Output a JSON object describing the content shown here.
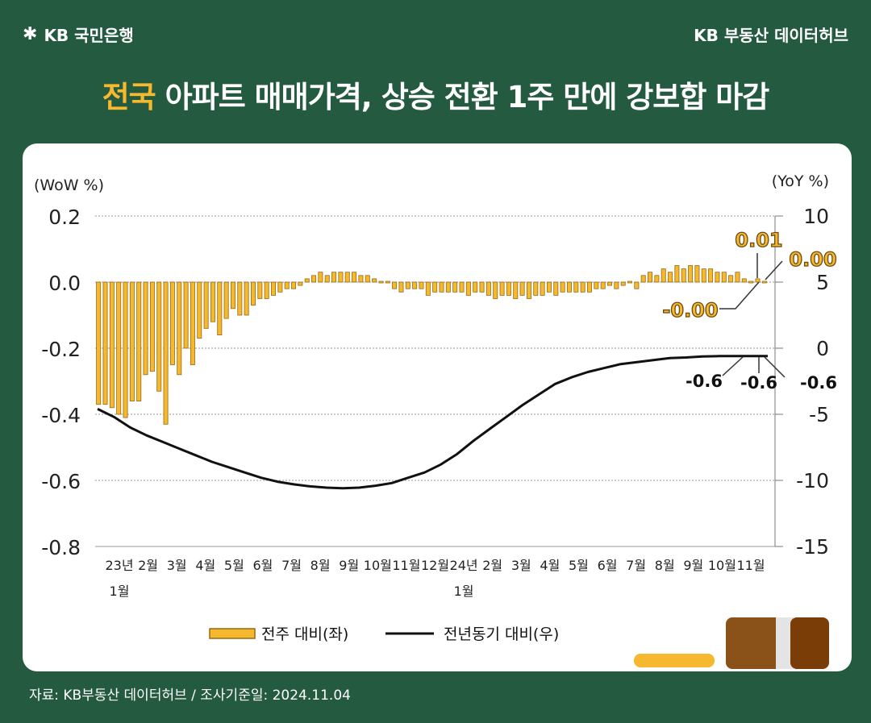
{
  "header": {
    "logo_text": "KB 국민은행",
    "brand": "KB 부동산 데이터허브",
    "title_highlight": "전국",
    "title_rest": " 아파트 매매가격, 상승 전환 1주 만에 강보합 마감"
  },
  "footer": {
    "source": "자료: KB부동산 데이터허브 / 조사기준일: 2024.11.04"
  },
  "colors": {
    "background": "#245a40",
    "bar": "#f5b82e",
    "bar_edge": "#9a6a10",
    "line": "#111111",
    "title_highlight": "#f5b82e"
  },
  "chart_data": {
    "type": "bar",
    "left_axis_label": "(WoW %)",
    "right_axis_label": "(YoY %)",
    "left_ylim": [
      -0.8,
      0.2
    ],
    "left_ticks": [
      "0.2",
      "0.0",
      "-0.2",
      "-0.4",
      "-0.6",
      "-0.8"
    ],
    "right_ylim": [
      -15,
      10
    ],
    "right_ticks": [
      "10",
      "5",
      "0",
      "-5",
      "-10",
      "-15"
    ],
    "x_tick_labels": [
      "23년",
      "2월",
      "3월",
      "4월",
      "5월",
      "6월",
      "7월",
      "8월",
      "9월",
      "10월",
      "11월",
      "12월",
      "24년",
      "2월",
      "3월",
      "4월",
      "5월",
      "6월",
      "7월",
      "8월",
      "9월",
      "10월",
      "11월"
    ],
    "x_tick_sublabels": [
      "1월",
      "",
      "",
      "",
      "",
      "",
      "",
      "",
      "",
      "",
      "",
      "",
      "1월",
      "",
      "",
      "",
      "",
      "",
      "",
      "",
      "",
      "",
      ""
    ],
    "series": [
      {
        "name": "전주 대비(좌)",
        "axis": "left",
        "values": [
          -0.37,
          -0.37,
          -0.38,
          -0.4,
          -0.41,
          -0.36,
          -0.36,
          -0.28,
          -0.27,
          -0.33,
          -0.43,
          -0.25,
          -0.28,
          -0.2,
          -0.25,
          -0.17,
          -0.14,
          -0.12,
          -0.16,
          -0.11,
          -0.08,
          -0.1,
          -0.1,
          -0.07,
          -0.05,
          -0.05,
          -0.04,
          -0.03,
          -0.02,
          -0.02,
          -0.01,
          0.01,
          0.02,
          0.03,
          0.02,
          0.03,
          0.03,
          0.03,
          0.03,
          0.02,
          0.02,
          0.01,
          0.0,
          0.0,
          -0.02,
          -0.03,
          -0.02,
          -0.02,
          -0.02,
          -0.04,
          -0.03,
          -0.03,
          -0.03,
          -0.03,
          -0.03,
          -0.04,
          -0.03,
          -0.03,
          -0.04,
          -0.05,
          -0.04,
          -0.04,
          -0.05,
          -0.04,
          -0.05,
          -0.04,
          -0.04,
          -0.03,
          -0.04,
          -0.03,
          -0.03,
          -0.03,
          -0.03,
          -0.03,
          -0.02,
          -0.02,
          -0.01,
          -0.02,
          -0.01,
          0.0,
          -0.02,
          0.02,
          0.03,
          0.02,
          0.04,
          0.03,
          0.05,
          0.04,
          0.05,
          0.05,
          0.04,
          0.04,
          0.03,
          0.03,
          0.02,
          0.03,
          0.01,
          0.0,
          0.01,
          0.0
        ]
      },
      {
        "name": "전년동기 대비(우)",
        "axis": "right",
        "values": [
          -4.6,
          -5.2,
          -6.0,
          -6.6,
          -7.1,
          -7.6,
          -8.1,
          -8.6,
          -9.0,
          -9.4,
          -9.8,
          -10.1,
          -10.3,
          -10.45,
          -10.55,
          -10.6,
          -10.55,
          -10.4,
          -10.2,
          -9.8,
          -9.4,
          -8.8,
          -8.0,
          -7.0,
          -6.1,
          -5.2,
          -4.3,
          -3.5,
          -2.7,
          -2.2,
          -1.8,
          -1.5,
          -1.2,
          -1.05,
          -0.9,
          -0.75,
          -0.7,
          -0.62,
          -0.6,
          -0.6,
          -0.6,
          -0.6
        ]
      }
    ],
    "annotations": {
      "bar_labels": [
        "0.01",
        "0.00",
        "-0.00"
      ],
      "line_labels": [
        "-0.6",
        "-0.6",
        "-0.6"
      ]
    },
    "legend": [
      "전주 대비(좌)",
      "전년동기 대비(우)"
    ],
    "legend_position": "bottom"
  }
}
